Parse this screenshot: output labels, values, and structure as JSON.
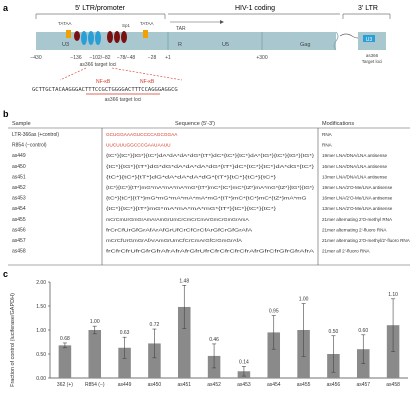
{
  "panel_a": {
    "label": "a",
    "ltr5_title": "5' LTR/promoter",
    "coding_title": "HIV-1 coding",
    "ltr3_title": "3' LTR",
    "region_labels": [
      "U3",
      "R",
      "U5",
      "Gag",
      "U3"
    ],
    "tar_label": "TAR",
    "tata_labels": [
      "TATAA",
      "TATAA"
    ],
    "sp1_label": "Sp1",
    "nfkb_labels": [
      "NF-κB",
      "NF-κB"
    ],
    "coords": [
      "−430",
      "−136",
      "−102/−82",
      "−78/−48",
      "−28",
      "+1",
      "+300"
    ],
    "target_label_left": "as366 target loci",
    "target_label_right": "as366\nTarget loci",
    "sequence": "GCTTGCTACAAGGGACTTTCCGCTGGGGACTTTCCAGGGAGGCG",
    "sequence_label": "as366 target loci",
    "right_box_text": "U3"
  },
  "panel_b": {
    "label": "b",
    "headers": [
      "Sample",
      "Sequence (5'-3')",
      "Modifications"
    ],
    "rows": [
      {
        "sample": "LTR-366as (+control)",
        "seq": "GCUGGAAAGUCCCCAGCGGAA",
        "mod": "RNA",
        "red": true
      },
      {
        "sample": "R854 (−control)",
        "seq": "UUCUUUGGCCCGAAUAAUU",
        "mod": "RNA",
        "red": true
      },
      {
        "sample": "as449",
        "seq": "{tC*}{tC*}{tG*}{tC*}dA*dA*dA*dG*{tT*}dC*{tC*}{tC*}dA*{tG*}{tC*}{tG*}{tG*}",
        "mod": "19mer LNA/DNA/LNA antisense",
        "red": false
      },
      {
        "sample": "as450",
        "seq": "{tC*}{tG*}{tT*}dG*dG*dA*dA*dA*dG*{tT*}dC*{tC*}{tC*}dA*dG*{tC*}",
        "mod": "16mer LNA/DNA/LNA antisense",
        "red": false
      },
      {
        "sample": "as451",
        "seq": "{tC*}{tC*}{tT*}dG*dA*dA*dA*dG*{tT*}{tC*}{tC*}{tC*}",
        "mod": "13mer LNA/DNA/LNA antisense",
        "red": false
      },
      {
        "sample": "as452",
        "seq": "{tC*}{tC*}{tT*}mG*mA*mA*mA*mG*{tT*}mC*{tC*}mC*{tZ*}mA*mG*{tZ*}{tG*}{tG*}",
        "mod": "19mer LNA/2'O-Me/LNA antisense",
        "red": false
      },
      {
        "sample": "as453",
        "seq": "{tC*}{tC*}{tT*}mG*mG*mA*mA*mA*mG*{tT*}mC*{tC*}mC*{tZ*}mA*mG",
        "mod": "16mer LNA/2'O-Me/LNA antisense",
        "red": false
      },
      {
        "sample": "as454",
        "seq": "{tC*}{tC*}{tT*}mG*mA*mA*mA*mG*{tT*}{tC*}{tC*}{tC*}",
        "mod": "13mer LNA/2'O-Me/LNA antisense",
        "red": false
      },
      {
        "sample": "as455",
        "seq": "mCrCmUrGmGrAmArAmGrUmCrCmCrCmArGmCrGmGrAmA",
        "mod": "21mer alternating 2'O-methyl RNA",
        "red": false
      },
      {
        "sample": "as456",
        "seq": "frCrCfUrGfGrAfArAfGrUfCrCfCrCfArGfCrGfGrAfA",
        "mod": "21mer alternating 2'-fluoro RNA",
        "red": false
      },
      {
        "sample": "as457",
        "seq": "mCrCfUrGmGrAfArAmGrUmCfCrCmArGfCrGmGrAfA",
        "mod": "21mer alternating 2'O-methyl/2'-fluoro RNA",
        "red": false
      },
      {
        "sample": "as458",
        "seq": "frCfrCfrUfrGfrGfrAfrAfrAfrGfrUfrCfrCfrCfrCfrAfrGfrCfrGfrGfrAfrA",
        "mod": "21mer all 2'-fluoro RNA",
        "red": false
      }
    ]
  },
  "panel_c": {
    "label": "c",
    "chart_data": {
      "type": "bar",
      "categories": [
        "362 (+)",
        "R854 (−)",
        "as449",
        "as450",
        "as451",
        "as452",
        "as453",
        "as454",
        "as455",
        "as456",
        "as457",
        "as458"
      ],
      "values": [
        0.68,
        1.0,
        0.63,
        0.72,
        1.48,
        0.46,
        0.14,
        0.95,
        1.0,
        0.5,
        0.6,
        1.1
      ],
      "value_labels": [
        "0.68",
        "1.00",
        "0.63",
        "0.72",
        "1.48",
        "0.46",
        "0.14",
        "0.95",
        "1.00",
        "0.50",
        "0.60",
        "1.10"
      ],
      "errors": [
        0.05,
        0.08,
        0.22,
        0.3,
        0.45,
        0.25,
        0.1,
        0.35,
        0.55,
        0.38,
        0.3,
        0.55
      ],
      "ylabel": "Fraction of control (luciferase/GAPDH)",
      "xlabel": "",
      "yticks": [
        "0.00",
        "0.50",
        "1.00",
        "1.50",
        "2.00"
      ],
      "ylim": [
        0,
        2.0
      ],
      "grid": false,
      "bar_color": "#8a8a8a"
    }
  },
  "colors": {
    "region_bar": "#a8c7cf",
    "region_bar_dark": "#7fa7b1",
    "tata": "#f2a200",
    "sp1_dark": "#7a1010",
    "sp1_light": "#2a9fd6",
    "nfkb_red": "#d33a2a",
    "red_text": "#d33a2a"
  }
}
